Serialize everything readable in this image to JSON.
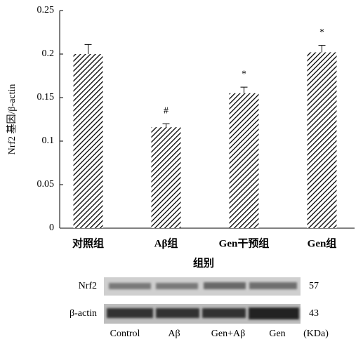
{
  "chart_data": {
    "type": "bar",
    "ylabel": "Nrf2 基因/β-actin",
    "xlabel": "组别",
    "categories": [
      "对照组",
      "Aβ组",
      "Gen干预组",
      "Gen组"
    ],
    "values": [
      0.2,
      0.116,
      0.155,
      0.202
    ],
    "errors": [
      0.011,
      0.004,
      0.007,
      0.008
    ],
    "annotations": [
      null,
      "#",
      "*",
      "*"
    ],
    "color": "#000000",
    "ylim": [
      0,
      0.25
    ],
    "yticks": [
      0,
      0.05,
      0.1,
      0.15,
      0.2,
      0.25
    ]
  },
  "blot": {
    "rows": [
      {
        "label": "Nrf2",
        "kda": 57
      },
      {
        "label": "β-actin",
        "kda": 43
      }
    ],
    "lanes": [
      "Control",
      "Aβ",
      "Gen+Aβ",
      "Gen"
    ],
    "unit": "(KDa)"
  }
}
